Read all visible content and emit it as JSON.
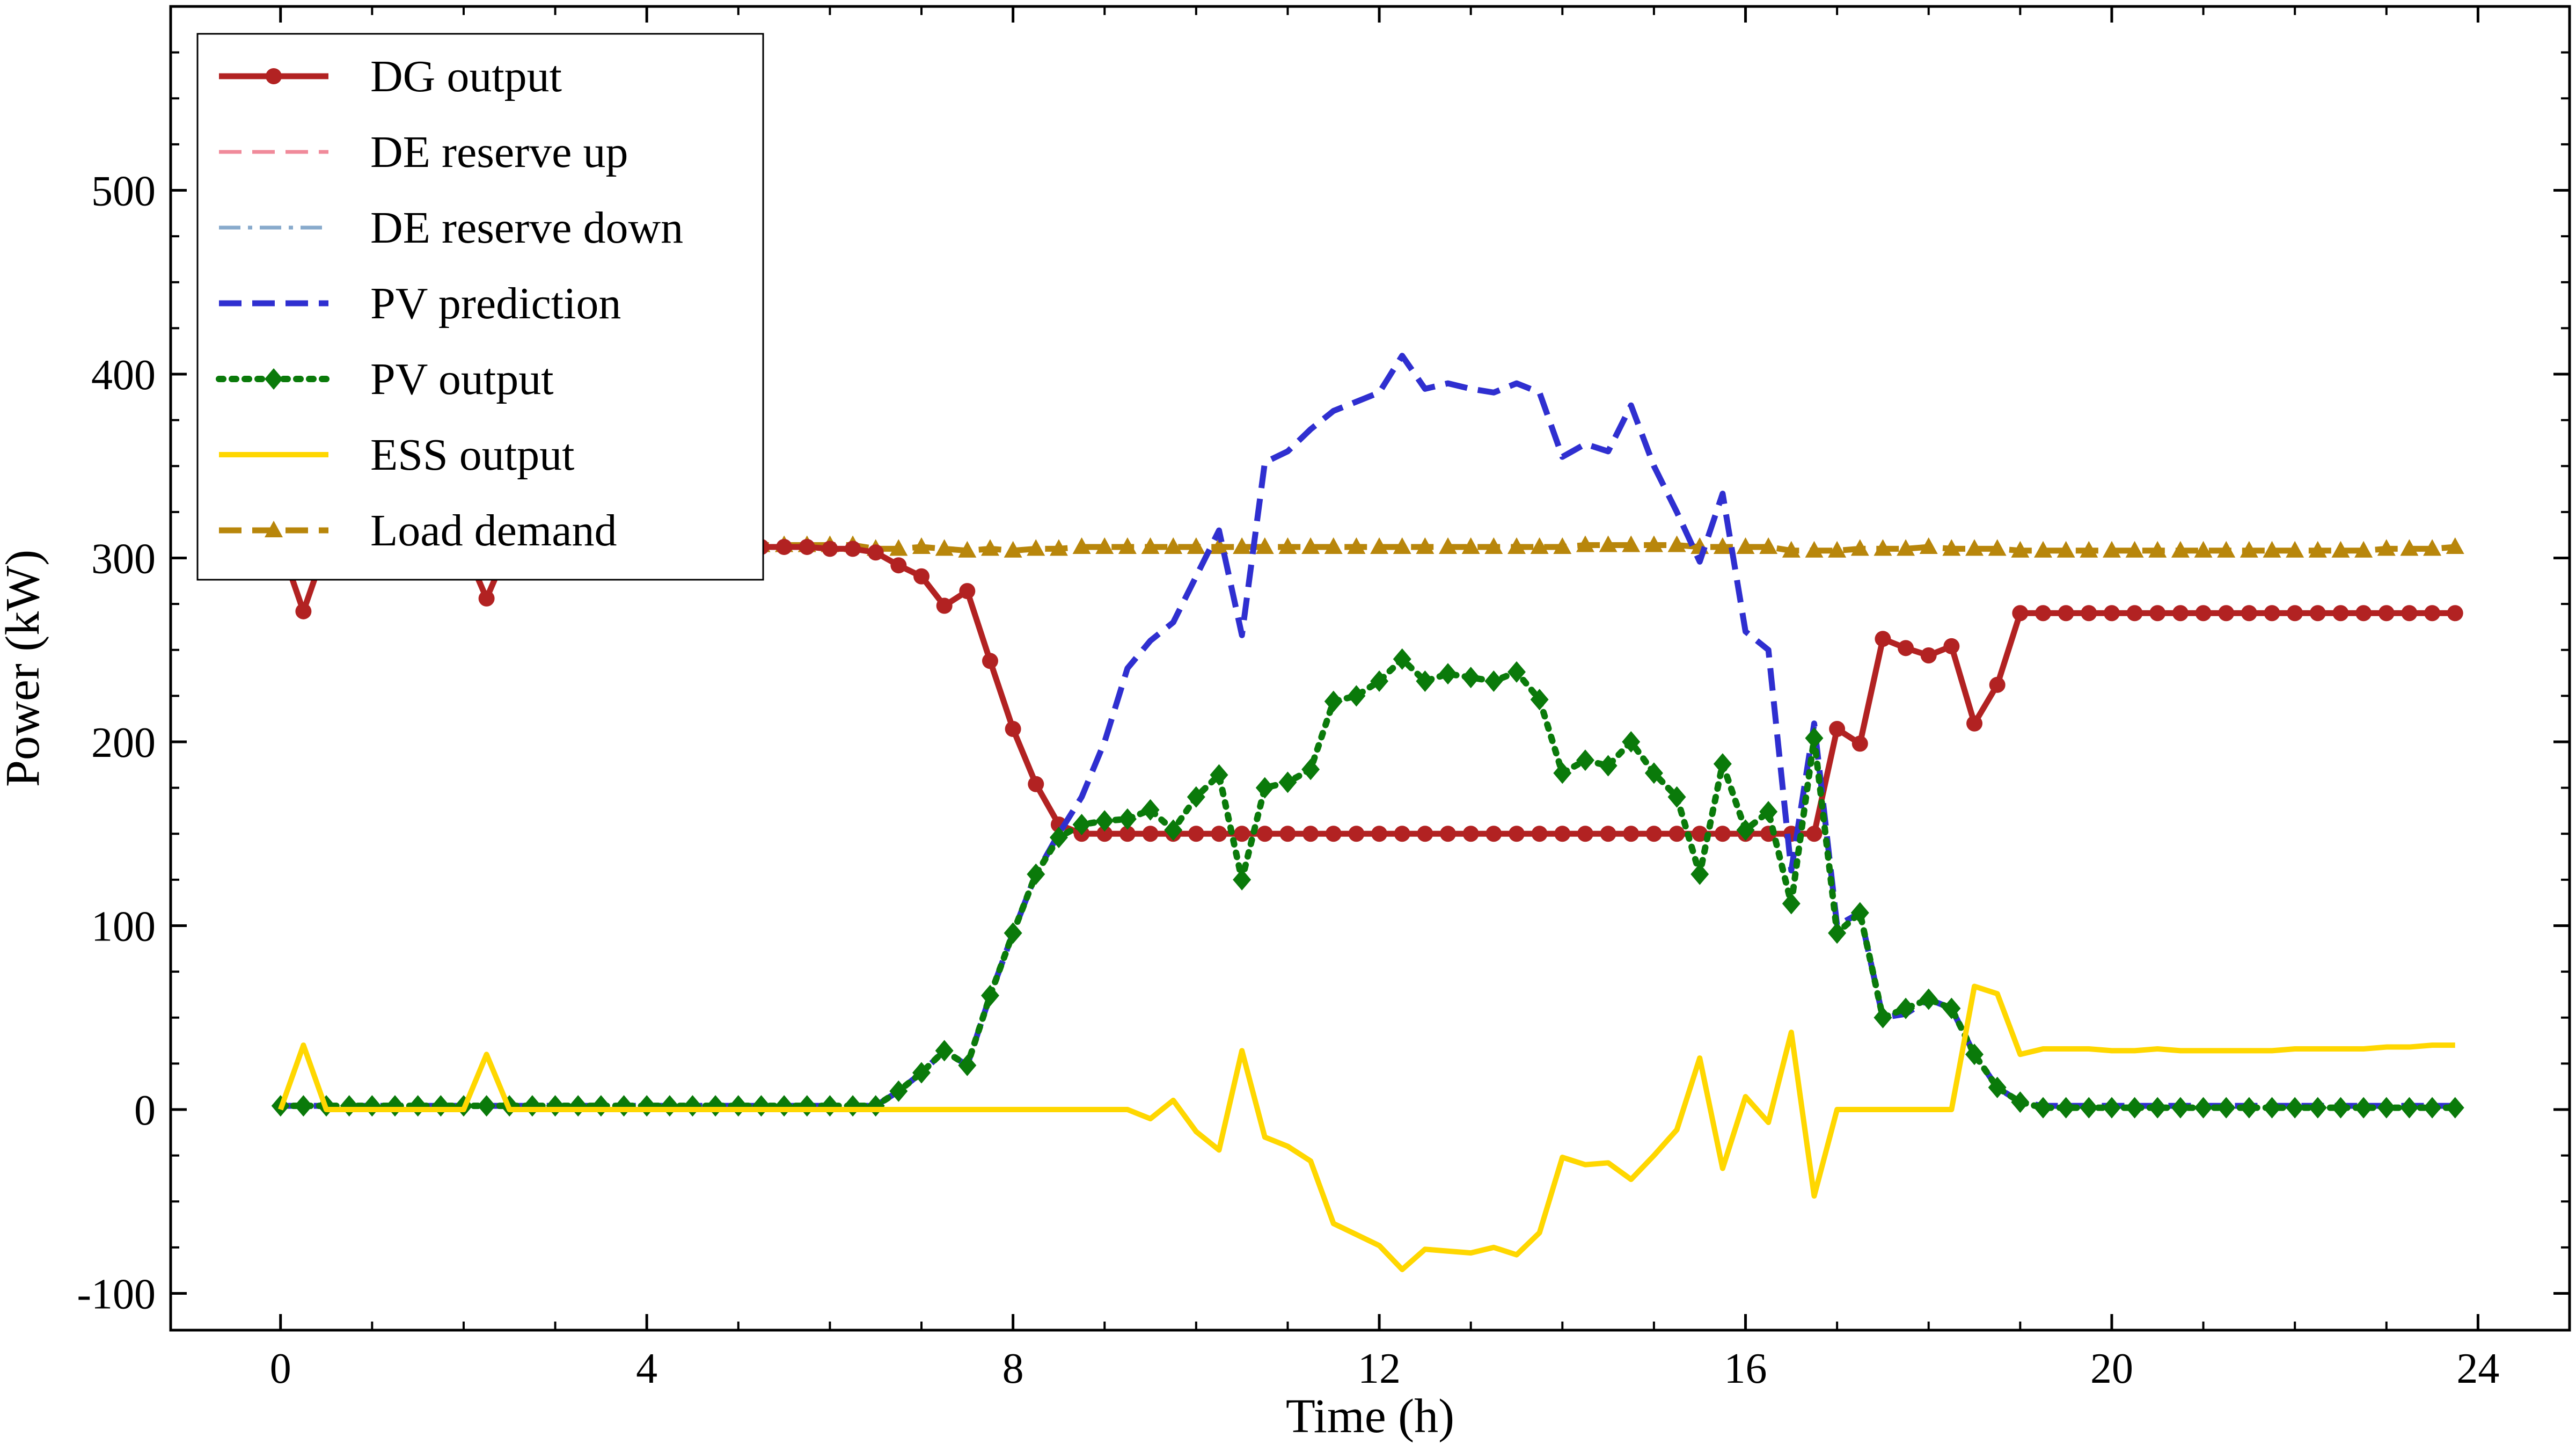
{
  "chart_data": {
    "type": "line",
    "title": "",
    "xlabel": "Time (h)",
    "ylabel": "Power (kW)",
    "xlim": [
      -1.2,
      25
    ],
    "ylim": [
      -120,
      600
    ],
    "xticks": [
      0,
      4,
      8,
      12,
      16,
      20,
      24
    ],
    "yticks": [
      -100,
      0,
      100,
      200,
      300,
      400,
      500
    ],
    "grid": false,
    "legend_position": "top-left",
    "x": [
      0,
      0.25,
      0.5,
      0.75,
      1,
      1.25,
      1.5,
      1.75,
      2,
      2.25,
      2.5,
      2.75,
      3,
      3.25,
      3.5,
      3.75,
      4,
      4.25,
      4.5,
      4.75,
      5,
      5.25,
      5.5,
      5.75,
      6,
      6.25,
      6.5,
      6.75,
      7,
      7.25,
      7.5,
      7.75,
      8,
      8.25,
      8.5,
      8.75,
      9,
      9.25,
      9.5,
      9.75,
      10,
      10.25,
      10.5,
      10.75,
      11,
      11.25,
      11.5,
      11.75,
      12,
      12.25,
      12.5,
      12.75,
      13,
      13.25,
      13.5,
      13.75,
      14,
      14.25,
      14.5,
      14.75,
      15,
      15.25,
      15.5,
      15.75,
      16,
      16.25,
      16.5,
      16.75,
      17,
      17.25,
      17.5,
      17.75,
      18,
      18.25,
      18.5,
      18.75,
      19,
      19.25,
      19.5,
      19.75,
      20,
      20.25,
      20.5,
      20.75,
      21,
      21.25,
      21.5,
      21.75,
      22,
      22.25,
      22.5,
      22.75,
      23,
      23.25,
      23.5,
      23.75
    ],
    "series": [
      {
        "name": "Load demand",
        "color": "#b8860b",
        "style": "dashed",
        "marker": "triangle",
        "values": [
          307,
          307,
          307,
          307,
          307,
          307,
          307,
          307,
          307,
          307,
          307,
          307,
          307,
          307,
          307,
          307,
          307,
          307,
          307,
          307,
          307,
          307,
          307,
          307,
          307,
          307,
          305,
          305,
          306,
          305,
          304,
          305,
          304,
          305,
          305,
          306,
          306,
          306,
          306,
          306,
          306,
          306,
          306,
          306,
          306,
          306,
          306,
          306,
          306,
          306,
          306,
          306,
          306,
          306,
          306,
          306,
          306,
          307,
          307,
          307,
          307,
          307,
          306,
          306,
          306,
          306,
          304,
          304,
          304,
          305,
          305,
          305,
          306,
          305,
          305,
          305,
          304,
          304,
          304,
          304,
          304,
          304,
          304,
          304,
          304,
          304,
          304,
          304,
          304,
          304,
          304,
          304,
          305,
          305,
          305,
          306
        ]
      },
      {
        "name": "DE reserve down",
        "color": "#88aacc",
        "style": "dashdot",
        "marker": "",
        "values": [
          307,
          271,
          307,
          307,
          307,
          307,
          307,
          307,
          307,
          278,
          307,
          307,
          307,
          307,
          307,
          307,
          307,
          307,
          307,
          307,
          307,
          306,
          306,
          306,
          305,
          305,
          303,
          296,
          290,
          274,
          282,
          244,
          207,
          177,
          155,
          150,
          150,
          150,
          150,
          150,
          150,
          150,
          150,
          150,
          150,
          150,
          150,
          150,
          150,
          150,
          150,
          150,
          150,
          150,
          150,
          150,
          150,
          150,
          150,
          150,
          150,
          150,
          150,
          150,
          150,
          150,
          150,
          150,
          207,
          199,
          256,
          251,
          247,
          252,
          210,
          231,
          270,
          270,
          270,
          270,
          270,
          270,
          270,
          270,
          270,
          270,
          270,
          270,
          270,
          270,
          270,
          270,
          270,
          270,
          270,
          270
        ]
      },
      {
        "name": "DE reserve up",
        "color": "#f08a9a",
        "style": "dashed",
        "marker": "",
        "values": [
          307,
          271,
          307,
          307,
          307,
          307,
          307,
          307,
          307,
          278,
          307,
          307,
          307,
          307,
          307,
          307,
          307,
          307,
          307,
          307,
          307,
          306,
          306,
          306,
          305,
          305,
          303,
          296,
          290,
          274,
          282,
          244,
          207,
          177,
          155,
          150,
          150,
          150,
          150,
          150,
          150,
          150,
          150,
          150,
          150,
          150,
          150,
          150,
          150,
          150,
          150,
          150,
          150,
          150,
          150,
          150,
          150,
          150,
          150,
          150,
          150,
          150,
          150,
          150,
          150,
          150,
          150,
          150,
          207,
          199,
          256,
          251,
          247,
          252,
          210,
          231,
          270,
          270,
          270,
          270,
          270,
          270,
          270,
          270,
          270,
          270,
          270,
          270,
          270,
          270,
          270,
          270,
          270,
          270,
          270,
          270
        ]
      },
      {
        "name": "DG output",
        "color": "#b22222",
        "style": "solid",
        "marker": "circle",
        "values": [
          307,
          271,
          307,
          307,
          307,
          307,
          307,
          307,
          307,
          278,
          307,
          307,
          307,
          307,
          307,
          307,
          307,
          307,
          307,
          307,
          307,
          306,
          306,
          306,
          305,
          305,
          303,
          296,
          290,
          274,
          282,
          244,
          207,
          177,
          155,
          150,
          150,
          150,
          150,
          150,
          150,
          150,
          150,
          150,
          150,
          150,
          150,
          150,
          150,
          150,
          150,
          150,
          150,
          150,
          150,
          150,
          150,
          150,
          150,
          150,
          150,
          150,
          150,
          150,
          150,
          150,
          150,
          150,
          207,
          199,
          256,
          251,
          247,
          252,
          210,
          231,
          270,
          270,
          270,
          270,
          270,
          270,
          270,
          270,
          270,
          270,
          270,
          270,
          270,
          270,
          270,
          270,
          270,
          270,
          270,
          270
        ]
      },
      {
        "name": "PV prediction",
        "color": "#2f2fd0",
        "style": "dashed",
        "marker": "",
        "values": [
          2,
          2,
          2,
          2,
          2,
          2,
          2,
          2,
          2,
          2,
          2,
          2,
          2,
          2,
          2,
          2,
          2,
          2,
          2,
          2,
          2,
          2,
          2,
          2,
          2,
          2,
          2,
          10,
          20,
          32,
          24,
          62,
          96,
          128,
          150,
          170,
          200,
          240,
          255,
          265,
          290,
          315,
          258,
          352,
          358,
          370,
          380,
          385,
          390,
          410,
          392,
          395,
          392,
          390,
          395,
          390,
          355,
          362,
          358,
          383,
          350,
          325,
          298,
          335,
          260,
          250,
          130,
          210,
          100,
          107,
          50,
          52,
          60,
          55,
          30,
          12,
          4,
          2,
          2,
          2,
          2,
          2,
          2,
          2,
          2,
          2,
          2,
          2,
          2,
          2,
          2,
          2,
          2,
          2,
          2,
          2
        ]
      },
      {
        "name": "PV output",
        "color": "#0a7a0a",
        "style": "dotted",
        "marker": "diamond",
        "values": [
          2,
          2,
          2,
          2,
          2,
          2,
          2,
          2,
          2,
          2,
          2,
          2,
          2,
          2,
          2,
          2,
          2,
          2,
          2,
          2,
          2,
          2,
          2,
          2,
          2,
          2,
          2,
          10,
          20,
          32,
          24,
          62,
          96,
          128,
          148,
          155,
          157,
          158,
          163,
          152,
          170,
          182,
          125,
          175,
          178,
          185,
          222,
          225,
          233,
          245,
          233,
          237,
          235,
          233,
          238,
          223,
          183,
          190,
          187,
          200,
          183,
          170,
          128,
          188,
          152,
          162,
          112,
          202,
          96,
          107,
          50,
          55,
          60,
          55,
          30,
          12,
          4,
          1,
          1,
          1,
          1,
          1,
          1,
          1,
          1,
          1,
          1,
          1,
          1,
          1,
          1,
          1,
          1,
          1,
          1,
          1
        ]
      },
      {
        "name": "ESS output",
        "color": "#ffd700",
        "style": "solid",
        "marker": "",
        "values": [
          0,
          35,
          0,
          0,
          0,
          0,
          0,
          0,
          0,
          30,
          0,
          0,
          0,
          0,
          0,
          0,
          0,
          0,
          0,
          0,
          0,
          0,
          0,
          0,
          0,
          0,
          0,
          0,
          0,
          0,
          0,
          0,
          0,
          0,
          0,
          0,
          0,
          0,
          -5,
          5,
          -12,
          -22,
          32,
          -15,
          -20,
          -28,
          -62,
          -68,
          -74,
          -87,
          -76,
          -77,
          -78,
          -75,
          -79,
          -67,
          -26,
          -30,
          -29,
          -38,
          -25,
          -11,
          28,
          -32,
          7,
          -7,
          42,
          -47,
          0,
          0,
          0,
          0,
          0,
          0,
          67,
          63,
          30,
          33,
          33,
          33,
          32,
          32,
          33,
          32,
          32,
          32,
          32,
          32,
          33,
          33,
          33,
          33,
          34,
          34,
          35,
          35
        ]
      }
    ],
    "legend": [
      "DG output",
      "DE reserve up",
      "DE reserve down",
      "PV prediction",
      "PV output",
      "ESS output",
      "Load demand"
    ]
  }
}
